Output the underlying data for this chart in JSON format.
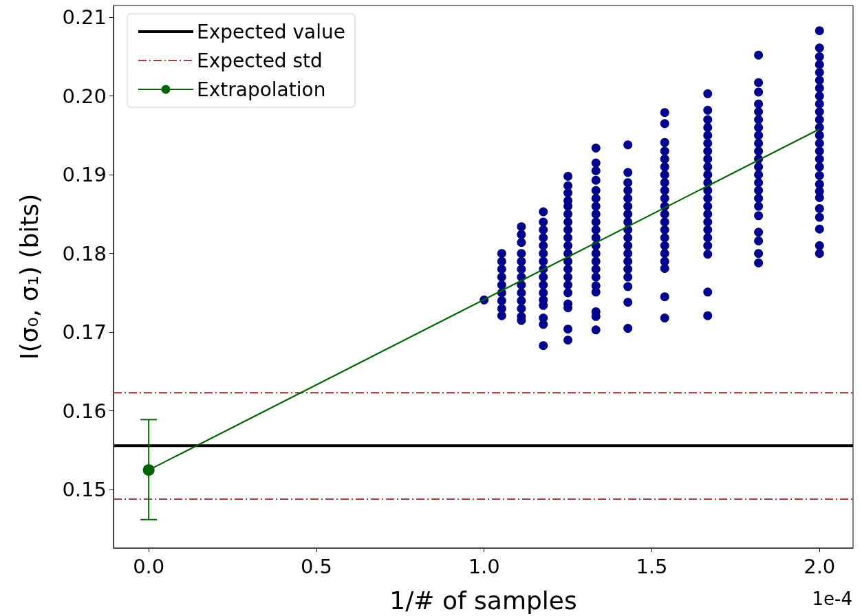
{
  "chart_data": {
    "type": "scatter",
    "xlabel": "1/# of samples",
    "ylabel": "I(σ₀, σ₁) (bits)",
    "xlim": [
      -0.105,
      2.1
    ],
    "ylim": [
      0.1426,
      0.2115
    ],
    "xticks": [
      {
        "value": 0,
        "label": "0.0"
      },
      {
        "value": 0.5,
        "label": "0.5"
      },
      {
        "value": 1,
        "label": "1.0"
      },
      {
        "value": 1.5,
        "label": "1.5"
      },
      {
        "value": 2,
        "label": "2.0"
      }
    ],
    "yticks": [
      0.15,
      0.16,
      0.17,
      0.18,
      0.19,
      {
        "value": 0.2,
        "label": "0.20"
      },
      0.21
    ],
    "grid": false,
    "legend": "top left",
    "marker": "circle",
    "annotations": [
      "1e-4"
    ],
    "ref_lines": [
      {
        "axis": "y",
        "value": 0.1556,
        "label": "Expected value",
        "color": "#000000",
        "line_style": "solid"
      },
      {
        "axis": "y",
        "value": 0.1623,
        "label": "Expected std",
        "color": "#8b0000",
        "line_style": "dashed"
      },
      {
        "axis": "y",
        "value": 0.1488,
        "color": "#8b0000",
        "line_style": "dashed"
      }
    ],
    "series": [
      {
        "color": "#00008b",
        "x": [
          1.0,
          1.0526,
          1.0526,
          1.0526,
          1.0526,
          1.0526,
          1.0526,
          1.0526,
          1.0526,
          1.0526,
          1.1111,
          1.1111,
          1.1111,
          1.1111,
          1.1111,
          1.1111,
          1.1111,
          1.1111,
          1.1111,
          1.1111,
          1.1111,
          1.1111,
          1.1111,
          1.1765,
          1.1765,
          1.1765,
          1.1765,
          1.1765,
          1.1765,
          1.1765,
          1.1765,
          1.1765,
          1.1765,
          1.1765,
          1.1765,
          1.1765,
          1.1765,
          1.1765,
          1.1765,
          1.25,
          1.25,
          1.25,
          1.25,
          1.25,
          1.25,
          1.25,
          1.25,
          1.25,
          1.25,
          1.25,
          1.25,
          1.25,
          1.25,
          1.25,
          1.25,
          1.25,
          1.25,
          1.25,
          1.25,
          1.3333,
          1.3333,
          1.3333,
          1.3333,
          1.3333,
          1.3333,
          1.3333,
          1.3333,
          1.3333,
          1.3333,
          1.3333,
          1.3333,
          1.3333,
          1.3333,
          1.3333,
          1.3333,
          1.3333,
          1.3333,
          1.3333,
          1.3333,
          1.3333,
          1.4286,
          1.4286,
          1.4286,
          1.4286,
          1.4286,
          1.4286,
          1.4286,
          1.4286,
          1.4286,
          1.4286,
          1.4286,
          1.4286,
          1.4286,
          1.4286,
          1.4286,
          1.4286,
          1.4286,
          1.4286,
          1.5385,
          1.5385,
          1.5385,
          1.5385,
          1.5385,
          1.5385,
          1.5385,
          1.5385,
          1.5385,
          1.5385,
          1.5385,
          1.5385,
          1.5385,
          1.5385,
          1.5385,
          1.5385,
          1.5385,
          1.5385,
          1.5385,
          1.5385,
          1.5385,
          1.6667,
          1.6667,
          1.6667,
          1.6667,
          1.6667,
          1.6667,
          1.6667,
          1.6667,
          1.6667,
          1.6667,
          1.6667,
          1.6667,
          1.6667,
          1.6667,
          1.6667,
          1.6667,
          1.6667,
          1.6667,
          1.6667,
          1.6667,
          1.6667,
          1.6667,
          1.8182,
          1.8182,
          1.8182,
          1.8182,
          1.8182,
          1.8182,
          1.8182,
          1.8182,
          1.8182,
          1.8182,
          1.8182,
          1.8182,
          1.8182,
          1.8182,
          1.8182,
          1.8182,
          1.8182,
          1.8182,
          1.8182,
          1.8182,
          1.8182,
          1.8182,
          2.0,
          2.0,
          2.0,
          2.0,
          2.0,
          2.0,
          2.0,
          2.0,
          2.0,
          2.0,
          2.0,
          2.0,
          2.0,
          2.0,
          2.0,
          2.0,
          2.0,
          2.0,
          2.0,
          2.0,
          2.0,
          2.0,
          2.0,
          2.0,
          2.0,
          2.0
        ],
        "values": [
          0.1741,
          0.18,
          0.179,
          0.178,
          0.177,
          0.176,
          0.175,
          0.174,
          0.173,
          0.1721,
          0.1834,
          0.1824,
          0.1814,
          0.18,
          0.179,
          0.178,
          0.177,
          0.176,
          0.175,
          0.174,
          0.173,
          0.172,
          0.1715,
          0.1853,
          0.184,
          0.183,
          0.182,
          0.181,
          0.18,
          0.179,
          0.178,
          0.177,
          0.176,
          0.175,
          0.1741,
          0.1734,
          0.1718,
          0.171,
          0.1683,
          0.1898,
          0.1886,
          0.1877,
          0.1867,
          0.186,
          0.185,
          0.184,
          0.183,
          0.182,
          0.181,
          0.18,
          0.179,
          0.178,
          0.177,
          0.176,
          0.175,
          0.1736,
          0.1731,
          0.1704,
          0.169,
          0.1934,
          0.1915,
          0.1905,
          0.1893,
          0.188,
          0.187,
          0.186,
          0.185,
          0.184,
          0.183,
          0.182,
          0.181,
          0.18,
          0.179,
          0.178,
          0.177,
          0.1759,
          0.1751,
          0.1726,
          0.172,
          0.1703,
          0.1938,
          0.1903,
          0.189,
          0.188,
          0.187,
          0.186,
          0.185,
          0.184,
          0.183,
          0.182,
          0.181,
          0.18,
          0.179,
          0.178,
          0.177,
          0.1758,
          0.1738,
          0.1705,
          0.1979,
          0.1965,
          0.1941,
          0.193,
          0.192,
          0.191,
          0.19,
          0.189,
          0.188,
          0.187,
          0.186,
          0.185,
          0.184,
          0.183,
          0.182,
          0.181,
          0.18,
          0.179,
          0.1781,
          0.1745,
          0.1718,
          0.2003,
          0.1982,
          0.197,
          0.196,
          0.195,
          0.194,
          0.193,
          0.192,
          0.191,
          0.19,
          0.189,
          0.188,
          0.187,
          0.186,
          0.185,
          0.184,
          0.183,
          0.182,
          0.181,
          0.1799,
          0.1751,
          0.1721,
          0.2052,
          0.2017,
          0.2005,
          0.199,
          0.198,
          0.197,
          0.196,
          0.195,
          0.194,
          0.193,
          0.192,
          0.191,
          0.19,
          0.189,
          0.188,
          0.187,
          0.186,
          0.1848,
          0.1827,
          0.1816,
          0.18,
          0.1788,
          0.2083,
          0.2061,
          0.205,
          0.204,
          0.203,
          0.202,
          0.201,
          0.2,
          0.199,
          0.198,
          0.197,
          0.196,
          0.195,
          0.194,
          0.193,
          0.192,
          0.191,
          0.1899,
          0.1888,
          0.1879,
          0.1871,
          0.1857,
          0.1846,
          0.1831,
          0.181,
          0.18
        ]
      },
      {
        "type": "line",
        "color": "#006400",
        "marker": "none",
        "x": [
          0,
          2.0
        ],
        "values": [
          0.1525,
          0.1958
        ]
      },
      {
        "type": "line",
        "name": "Extrapolation",
        "color": "#006400",
        "marker": "circle",
        "x": [
          0
        ],
        "values": [
          0.1525
        ],
        "errors": [
          [
            0.1462,
            0.1589
          ]
        ]
      }
    ]
  }
}
